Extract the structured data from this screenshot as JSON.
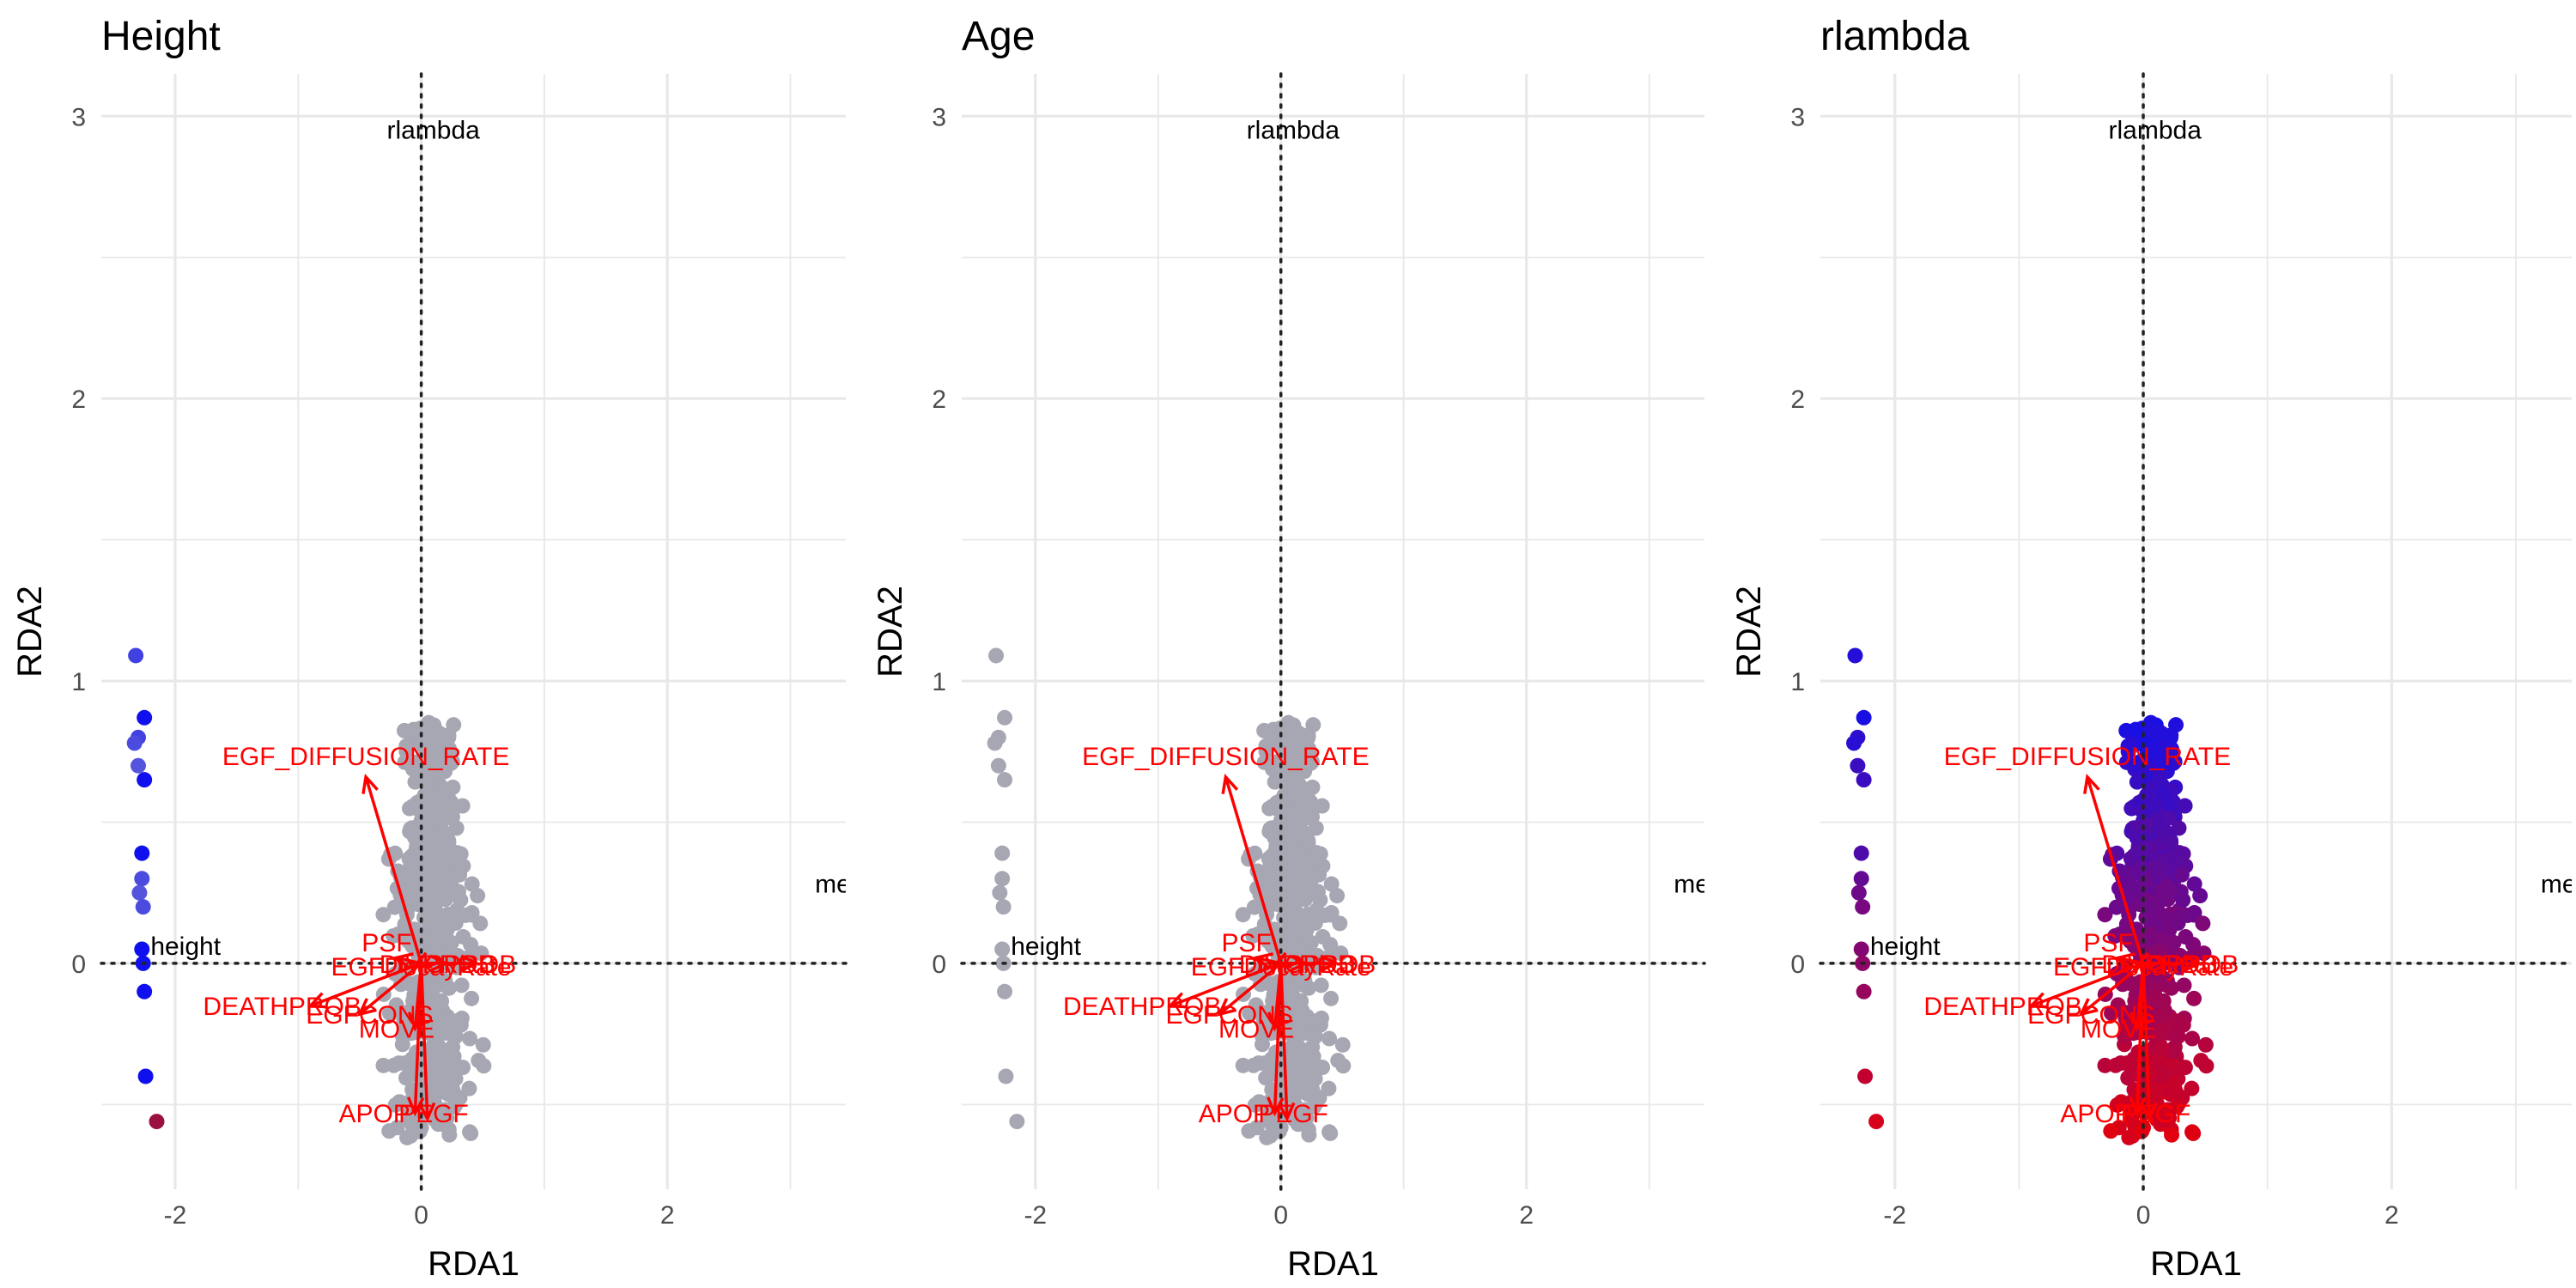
{
  "chart_data": [
    {
      "type": "scatter",
      "title": "Height",
      "xlabel": "RDA1",
      "ylabel": "RDA2",
      "xlim": [
        -2.6,
        3.45
      ],
      "ylim": [
        -0.8,
        3.15
      ],
      "x_ticks": [
        -2,
        0,
        2
      ],
      "x_tick_labels": [
        "-2",
        "0",
        "2"
      ],
      "y_ticks": [
        0,
        1,
        2,
        3
      ],
      "y_tick_labels": [
        "0",
        "1",
        "2",
        "3"
      ],
      "grid": true,
      "reference_lines": {
        "x": 0,
        "y": 0,
        "style": "dotted"
      },
      "point_color_mode": "height"
    },
    {
      "type": "scatter",
      "title": "Age",
      "xlabel": "RDA1",
      "ylabel": "RDA2",
      "xlim": [
        -2.6,
        3.45
      ],
      "ylim": [
        -0.8,
        3.15
      ],
      "x_ticks": [
        -2,
        0,
        2
      ],
      "x_tick_labels": [
        "-2",
        "0",
        "2"
      ],
      "y_ticks": [
        0,
        1,
        2,
        3
      ],
      "y_tick_labels": [
        "0",
        "1",
        "2",
        "3"
      ],
      "grid": true,
      "reference_lines": {
        "x": 0,
        "y": 0,
        "style": "dotted"
      },
      "point_color_mode": "grey"
    },
    {
      "type": "scatter",
      "title": "rlambda",
      "xlabel": "RDA1",
      "ylabel": "RDA2",
      "xlim": [
        -2.6,
        3.45
      ],
      "ylim": [
        -0.8,
        3.15
      ],
      "x_ticks": [
        -2,
        0,
        2
      ],
      "x_tick_labels": [
        "-2",
        "0",
        "2"
      ],
      "y_ticks": [
        0,
        1,
        2,
        3
      ],
      "y_tick_labels": [
        "0",
        "1",
        "2",
        "3"
      ],
      "grid": true,
      "reference_lines": {
        "x": 0,
        "y": 0,
        "style": "dotted"
      },
      "point_color_mode": "rlambda"
    }
  ],
  "biplot": {
    "arrow_color": "#ff0000",
    "arrows": [
      {
        "label": "EGF_DIFFUSION_RATE",
        "x": -0.45,
        "y": 0.66
      },
      {
        "label": "PSF",
        "x": -0.2,
        "y": 0.02
      },
      {
        "label": "EGFDecayRate",
        "x": -0.05,
        "y": -0.01
      },
      {
        "label": "DIVPROB",
        "x": 0.2,
        "y": 0.0
      },
      {
        "label": "CPROB",
        "x": 0.45,
        "y": 0.0
      },
      {
        "label": "DEATHPROB",
        "x": -0.9,
        "y": -0.15
      },
      {
        "label": "EGFCONS",
        "x": -0.5,
        "y": -0.18
      },
      {
        "label": "MOVE",
        "x": -0.05,
        "y": -0.23
      },
      {
        "label": "APOP",
        "x": -0.05,
        "y": -0.53
      },
      {
        "label": "PEGF",
        "x": 0.05,
        "y": -0.55
      }
    ],
    "variable_labels": [
      {
        "label": "rlambda",
        "x": -0.28,
        "y": 2.92
      },
      {
        "label": "height",
        "x": -2.2,
        "y": 0.03
      },
      {
        "label": "mean",
        "x": 3.2,
        "y": 0.25
      }
    ]
  },
  "sites": {
    "left_group": [
      {
        "x": -2.32,
        "y": 1.09,
        "height": 0.25,
        "rlambda": 0.1
      },
      {
        "x": -2.25,
        "y": 0.87,
        "height": 0.0,
        "rlambda": 0.05
      },
      {
        "x": -2.3,
        "y": 0.8,
        "height": 0.25,
        "rlambda": 0.15
      },
      {
        "x": -2.33,
        "y": 0.78,
        "height": 0.3,
        "rlambda": 0.12
      },
      {
        "x": -2.3,
        "y": 0.7,
        "height": 0.35,
        "rlambda": 0.2
      },
      {
        "x": -2.25,
        "y": 0.65,
        "height": 0.0,
        "rlambda": 0.2
      },
      {
        "x": -2.27,
        "y": 0.39,
        "height": 0.0,
        "rlambda": 0.3
      },
      {
        "x": -2.27,
        "y": 0.3,
        "height": 0.3,
        "rlambda": 0.4
      },
      {
        "x": -2.29,
        "y": 0.25,
        "height": 0.35,
        "rlambda": 0.45
      },
      {
        "x": -2.26,
        "y": 0.2,
        "height": 0.3,
        "rlambda": 0.5
      },
      {
        "x": -2.27,
        "y": 0.05,
        "height": 0.0,
        "rlambda": 0.55
      },
      {
        "x": -2.26,
        "y": 0.0,
        "height": 0.0,
        "rlambda": 0.6
      },
      {
        "x": -2.25,
        "y": -0.1,
        "height": 0.0,
        "rlambda": 0.65
      },
      {
        "x": -2.24,
        "y": -0.4,
        "height": 0.0,
        "rlambda": 0.85
      },
      {
        "x": -2.15,
        "y": -0.56,
        "height": 1.0,
        "rlambda": 0.95
      }
    ],
    "cloud": {
      "count": 520,
      "x_range": [
        -0.5,
        0.65
      ],
      "y_range": [
        -0.62,
        0.86
      ],
      "description_shape": "dense elongated vertical cluster"
    }
  },
  "colors": {
    "grey_points": "#a7a7b3",
    "low": "#1010ee",
    "high": "#e0000f",
    "grid": "#e8e8e8",
    "ref_line": "#222222",
    "axis_text": "#4d4d4d"
  }
}
